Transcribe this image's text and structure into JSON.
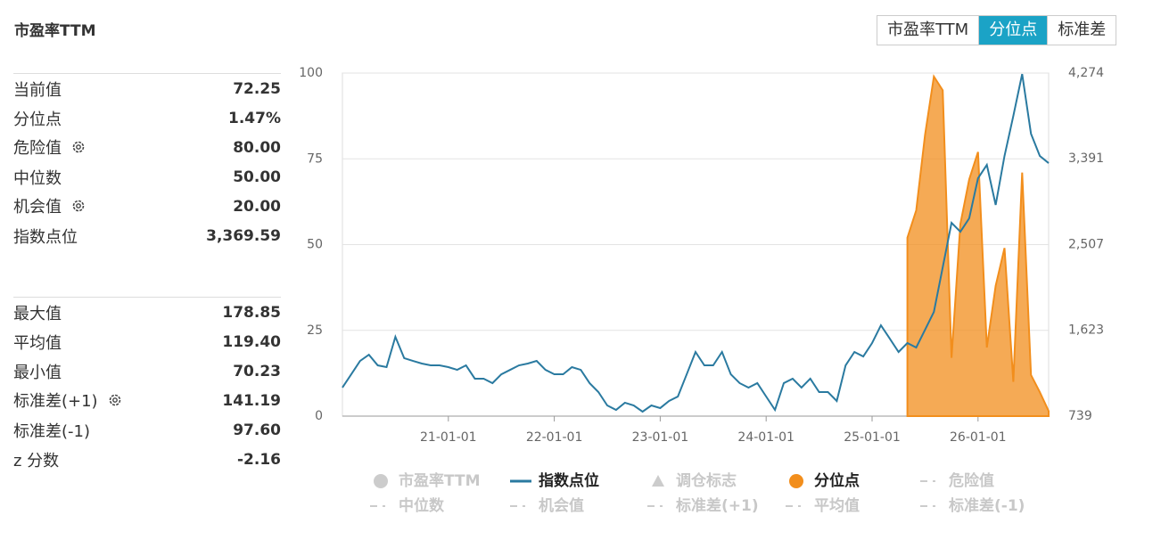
{
  "panel": {
    "title": "市盈率TTM",
    "buttons": [
      {
        "label": "市盈率TTM",
        "active": false
      },
      {
        "label": "分位点",
        "active": true
      },
      {
        "label": "标准差",
        "active": false
      }
    ],
    "groups": [
      [
        {
          "label": "当前值",
          "value": "72.25"
        },
        {
          "label": "分位点",
          "value": "1.47%"
        },
        {
          "label": "危险值",
          "value": "80.00",
          "gear": true
        },
        {
          "label": "中位数",
          "value": "50.00"
        },
        {
          "label": "机会值",
          "value": "20.00",
          "gear": true
        },
        {
          "label": "指数点位",
          "value": "3,369.59"
        }
      ],
      [
        {
          "label": "最大值",
          "value": "178.85"
        },
        {
          "label": "平均值",
          "value": "119.40"
        },
        {
          "label": "最小值",
          "value": "70.23"
        },
        {
          "label": "标准差(+1)",
          "value": "141.19",
          "gear": true
        },
        {
          "label": "标准差(-1)",
          "value": "97.60"
        },
        {
          "label": "z 分数",
          "value": "-2.16"
        }
      ]
    ]
  },
  "chart_data": {
    "type": "line",
    "x": [
      "20-01-01",
      "20-02-01",
      "20-03-01",
      "20-04-01",
      "20-05-01",
      "20-06-01",
      "20-07-01",
      "20-08-01",
      "20-09-01",
      "20-10-01",
      "20-11-01",
      "20-12-01",
      "21-01-01",
      "21-02-01",
      "21-03-01",
      "21-04-01",
      "21-05-01",
      "21-06-01",
      "21-07-01",
      "21-08-01",
      "21-09-01",
      "21-10-01",
      "21-11-01",
      "21-12-01",
      "22-01-01",
      "22-02-01",
      "22-03-01",
      "22-04-01",
      "22-05-01",
      "22-06-01",
      "22-07-01",
      "22-08-01",
      "22-09-01",
      "22-10-01",
      "22-11-01",
      "22-12-01",
      "23-01-01",
      "23-02-01",
      "23-03-01",
      "23-04-01",
      "23-05-01",
      "23-06-01",
      "23-07-01",
      "23-08-01",
      "23-09-01",
      "23-10-01",
      "23-11-01",
      "23-12-01",
      "24-01-01",
      "24-02-01",
      "24-03-01",
      "24-04-01",
      "24-05-01",
      "24-06-01",
      "24-07-01",
      "24-08-01",
      "24-09-01",
      "24-10-01",
      "24-11-01",
      "24-12-01",
      "25-01-01",
      "25-02-01",
      "25-03-01",
      "25-04-01",
      "25-05-01",
      "25-06-01",
      "25-07-01",
      "25-08-01",
      "25-09-01",
      "25-10-01",
      "25-11-01",
      "25-12-01",
      "26-01-01",
      "26-02-01",
      "26-03-01",
      "26-04-01",
      "26-05-01",
      "26-06-01",
      "26-07-01",
      "26-08-01",
      "26-09-01"
    ],
    "xlim": [
      "20-01-01",
      "26-09-01"
    ],
    "xticks": [
      "21-01-01",
      "22-01-01",
      "23-01-01",
      "24-01-01",
      "25-01-01",
      "26-01-01"
    ],
    "ylim": [
      0,
      100
    ],
    "yticks": [
      0,
      25,
      50,
      75,
      100
    ],
    "y2lim": [
      739,
      4274
    ],
    "y2ticks": [
      739,
      {
        "value": 1623,
        "label": "1,623"
      },
      {
        "value": 2507,
        "label": "2,507"
      },
      {
        "value": 3391,
        "label": "3,391"
      },
      {
        "value": 4274,
        "label": "4,274"
      }
    ],
    "grid": true,
    "series": [
      {
        "name": "指数点位",
        "color": "#2a7aa0",
        "kind": "line",
        "axis": "y2",
        "values": [
          1033,
          1170,
          1308,
          1372,
          1262,
          1244,
          1556,
          1336,
          1308,
          1281,
          1262,
          1262,
          1244,
          1216,
          1262,
          1125,
          1125,
          1079,
          1170,
          1216,
          1262,
          1281,
          1308,
          1216,
          1170,
          1170,
          1244,
          1216,
          1079,
          987,
          849,
          803,
          877,
          849,
          785,
          849,
          822,
          895,
          941,
          1170,
          1400,
          1262,
          1262,
          1400,
          1170,
          1079,
          1033,
          1079,
          941,
          803,
          1079,
          1125,
          1033,
          1125,
          987,
          987,
          895,
          1262,
          1400,
          1354,
          1492,
          1675,
          1538,
          1400,
          1492,
          1446,
          1629,
          1813,
          2272,
          2731,
          2639,
          2777,
          3190,
          3328,
          2915,
          3420,
          3833,
          4264,
          3649,
          3420,
          3346
        ]
      },
      {
        "name": "分位点",
        "color": "#f28e1c",
        "kind": "area",
        "axis": "y",
        "values": [
          null,
          null,
          null,
          null,
          null,
          null,
          null,
          null,
          null,
          null,
          null,
          null,
          null,
          null,
          null,
          null,
          null,
          null,
          null,
          null,
          null,
          null,
          null,
          null,
          null,
          null,
          null,
          null,
          null,
          null,
          null,
          null,
          null,
          null,
          null,
          null,
          null,
          null,
          null,
          null,
          null,
          null,
          null,
          null,
          null,
          null,
          null,
          null,
          null,
          null,
          null,
          null,
          null,
          null,
          null,
          null,
          null,
          null,
          null,
          null,
          null,
          null,
          null,
          null,
          52,
          60,
          82,
          99,
          95,
          17,
          56,
          69,
          77,
          20,
          38,
          49,
          10,
          71,
          12,
          7,
          1.47
        ]
      }
    ],
    "legend": [
      {
        "name": "市盈率TTM",
        "marker": "circle",
        "color": "#cccccc"
      },
      {
        "series": 0
      },
      {
        "name": "调仓标志",
        "marker": "triangle",
        "color": "#cccccc"
      },
      {
        "series": 1
      },
      {
        "name": "危险值",
        "marker": "dash",
        "color": "#cccccc"
      },
      {
        "name": "中位数",
        "marker": "dash",
        "color": "#cccccc"
      },
      {
        "name": "机会值",
        "marker": "dash",
        "color": "#cccccc"
      },
      {
        "name": "标准差(+1)",
        "marker": "dash",
        "color": "#cccccc"
      },
      {
        "name": "平均值",
        "marker": "dash",
        "color": "#cccccc"
      },
      {
        "name": "标准差(-1)",
        "marker": "dash",
        "color": "#cccccc"
      }
    ]
  }
}
